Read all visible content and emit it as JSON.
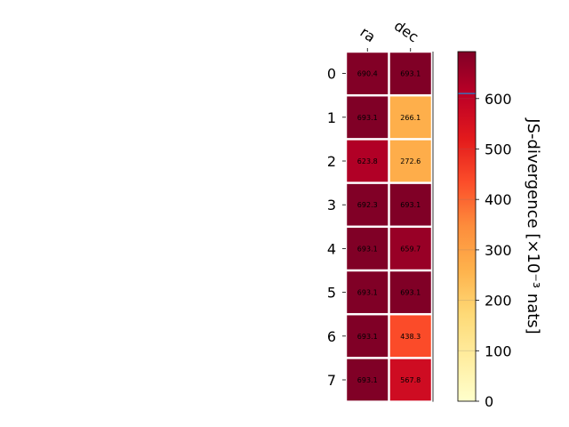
{
  "chart_data": {
    "type": "heatmap",
    "columns": [
      "ra",
      "dec"
    ],
    "rows": [
      "0",
      "1",
      "2",
      "3",
      "4",
      "5",
      "6",
      "7"
    ],
    "values": [
      [
        690.4,
        693.1
      ],
      [
        693.1,
        266.1
      ],
      [
        623.8,
        272.6
      ],
      [
        692.3,
        693.1
      ],
      [
        693.1,
        659.7
      ],
      [
        693.1,
        693.1
      ],
      [
        693.1,
        438.3
      ],
      [
        693.1,
        567.8
      ]
    ],
    "value_labels": [
      [
        "690.4",
        "693.1"
      ],
      [
        "693.1",
        "266.1"
      ],
      [
        "623.8",
        "272.6"
      ],
      [
        "692.3",
        "693.1"
      ],
      [
        "693.1",
        "659.7"
      ],
      [
        "693.1",
        "693.1"
      ],
      [
        "693.1",
        "438.3"
      ],
      [
        "693.1",
        "567.8"
      ]
    ],
    "colorbar": {
      "label": "JS-divergence [×10⁻³ nats]",
      "range": [
        0,
        693.1
      ],
      "ticks": [
        "0",
        "100",
        "200",
        "300",
        "400",
        "500",
        "600"
      ],
      "tick_values": [
        0,
        100,
        200,
        300,
        400,
        500,
        600
      ],
      "marker_value": 610,
      "marker_color": "#3b6fb6",
      "colormap": "YlOrRd"
    }
  }
}
